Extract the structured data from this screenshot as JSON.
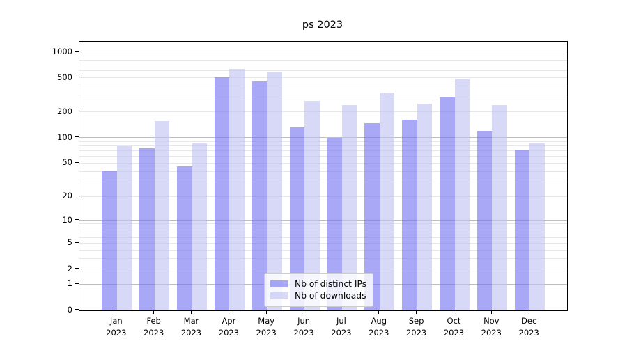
{
  "chart_data": {
    "type": "bar",
    "title": "ps 2023",
    "scale": "log1p",
    "categories": [
      "Jan",
      "Feb",
      "Mar",
      "Apr",
      "May",
      "Jun",
      "Jul",
      "Aug",
      "Sep",
      "Oct",
      "Nov",
      "Dec"
    ],
    "year_label": "2023",
    "series": [
      {
        "name": "Nb of distinct IPs",
        "color": "rgba(115,115,240,0.62)",
        "values": [
          40,
          74,
          45,
          505,
          450,
          130,
          98,
          145,
          162,
          290,
          118,
          72
        ]
      },
      {
        "name": "Nb of downloads",
        "color": "rgba(192,192,242,0.62)",
        "values": [
          78,
          155,
          85,
          625,
          570,
          265,
          240,
          335,
          245,
          475,
          240,
          85
        ]
      }
    ],
    "y_ticks": [
      0,
      1,
      2,
      5,
      10,
      20,
      50,
      100,
      200,
      500,
      1000
    ],
    "ylim": [
      0,
      1320
    ],
    "xlabel": "",
    "ylabel": "",
    "grid": true,
    "legend_position": "lower center",
    "colors": {
      "bar_dark_on_white": "#a8a8f6",
      "bar_light_on_white": "#d8d8f7",
      "grid_minor": "#e7e7e7",
      "grid_major": "#bdbdbd",
      "axis": "#000000"
    }
  }
}
